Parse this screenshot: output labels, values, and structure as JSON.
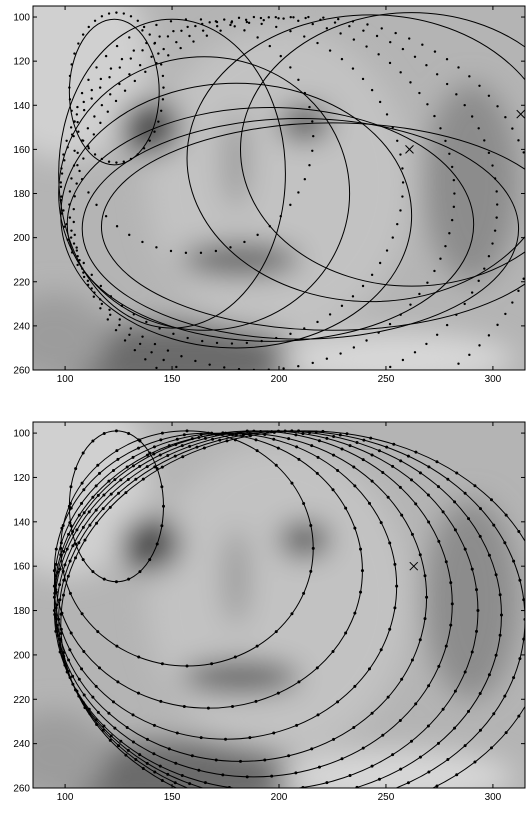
{
  "figure": {
    "colors": {
      "background": "#ffffff",
      "ink": "#000000",
      "photo_light": "#c8c8c8",
      "photo_dark": "#3a3a3a"
    }
  },
  "chart_data": [
    {
      "type": "scatter",
      "title": "",
      "xlabel": "",
      "ylabel": "",
      "xlim": [
        85,
        315
      ],
      "ylim": [
        260,
        95
      ],
      "y_reversed": true,
      "grid": false,
      "background_image": "grayscale photograph of a face",
      "xticks": [
        {
          "value": 100,
          "label": "100"
        },
        {
          "value": 150,
          "label": "150"
        },
        {
          "value": 200,
          "label": "200"
        },
        {
          "value": 250,
          "label": "250"
        },
        {
          "value": 300,
          "label": "300"
        }
      ],
      "yticks": [
        {
          "value": 100,
          "label": "100"
        },
        {
          "value": 120,
          "label": "120"
        },
        {
          "value": 140,
          "label": "140"
        },
        {
          "value": 160,
          "label": "160"
        },
        {
          "value": 180,
          "label": "180"
        },
        {
          "value": 200,
          "label": "200"
        },
        {
          "value": 220,
          "label": "220"
        },
        {
          "value": 240,
          "label": "240"
        },
        {
          "value": 260,
          "label": "260"
        }
      ],
      "series": [
        {
          "style": "line",
          "curves": [
            {
              "cx": 123,
              "cy": 134,
              "rx": 21,
              "ry": 33
            },
            {
              "cx": 150,
              "cy": 171,
              "rx": 53,
              "ry": 70
            },
            {
              "cx": 165,
              "cy": 180,
              "rx": 68,
              "ry": 62
            },
            {
              "cx": 180,
              "cy": 190,
              "rx": 82,
              "ry": 60
            },
            {
              "cx": 196,
              "cy": 194,
              "rx": 95,
              "ry": 53
            },
            {
              "cx": 210,
              "cy": 196,
              "rx": 102,
              "ry": 50
            },
            {
              "cx": 225,
              "cy": 195,
              "rx": 108,
              "ry": 47
            },
            {
              "cx": 243,
              "cy": 164,
              "rx": 86,
              "ry": 65
            },
            {
              "cx": 262,
              "cy": 160,
              "rx": 80,
              "ry": 62
            }
          ]
        },
        {
          "style": "dots",
          "curves": [
            {
              "cx": 124,
              "cy": 132,
              "rx": 22,
              "ry": 34
            },
            {
              "cx": 160,
              "cy": 154,
              "rx": 56,
              "ry": 53
            },
            {
              "cx": 178,
              "cy": 175,
              "rx": 80,
              "ry": 73
            },
            {
              "cx": 190,
              "cy": 180,
              "rx": 92,
              "ry": 80
            },
            {
              "cx": 202,
              "cy": 185,
              "rx": 100,
              "ry": 85
            },
            {
              "cx": 212,
              "cy": 190,
              "rx": 108,
              "ry": 90
            }
          ]
        }
      ],
      "markers": [
        {
          "shape": "x",
          "x": 261,
          "y": 160
        },
        {
          "shape": "x",
          "x": 313,
          "y": 144
        }
      ]
    },
    {
      "type": "scatter",
      "title": "",
      "xlabel": "",
      "ylabel": "",
      "xlim": [
        85,
        315
      ],
      "ylim": [
        260,
        95
      ],
      "y_reversed": true,
      "grid": false,
      "background_image": "grayscale photograph of a face",
      "xticks": [
        {
          "value": 100,
          "label": "100"
        },
        {
          "value": 150,
          "label": "150"
        },
        {
          "value": 200,
          "label": "200"
        },
        {
          "value": 250,
          "label": "250"
        },
        {
          "value": 300,
          "label": "300"
        }
      ],
      "yticks": [
        {
          "value": 100,
          "label": "100"
        },
        {
          "value": 120,
          "label": "120"
        },
        {
          "value": 140,
          "label": "140"
        },
        {
          "value": 160,
          "label": "160"
        },
        {
          "value": 180,
          "label": "180"
        },
        {
          "value": 200,
          "label": "200"
        },
        {
          "value": 220,
          "label": "220"
        },
        {
          "value": 240,
          "label": "240"
        },
        {
          "value": 260,
          "label": "260"
        }
      ],
      "series": [
        {
          "style": "line+dots",
          "curves": [
            {
              "cx": 124,
              "cy": 133,
              "rx": 22,
              "ry": 34
            },
            {
              "cx": 157,
              "cy": 152,
              "rx": 59,
              "ry": 53
            },
            {
              "cx": 167,
              "cy": 162,
              "rx": 72,
              "ry": 62
            },
            {
              "cx": 175,
              "cy": 169,
              "rx": 80,
              "ry": 69
            },
            {
              "cx": 182,
              "cy": 174,
              "rx": 87,
              "ry": 74
            },
            {
              "cx": 188,
              "cy": 177,
              "rx": 93,
              "ry": 78
            },
            {
              "cx": 194,
              "cy": 180,
              "rx": 99,
              "ry": 81
            },
            {
              "cx": 200,
              "cy": 182,
              "rx": 104,
              "ry": 83
            },
            {
              "cx": 206,
              "cy": 184,
              "rx": 109,
              "ry": 85
            },
            {
              "cx": 212,
              "cy": 186,
              "rx": 114,
              "ry": 87
            }
          ]
        }
      ],
      "markers": [
        {
          "shape": "x",
          "x": 263,
          "y": 160
        }
      ]
    }
  ]
}
